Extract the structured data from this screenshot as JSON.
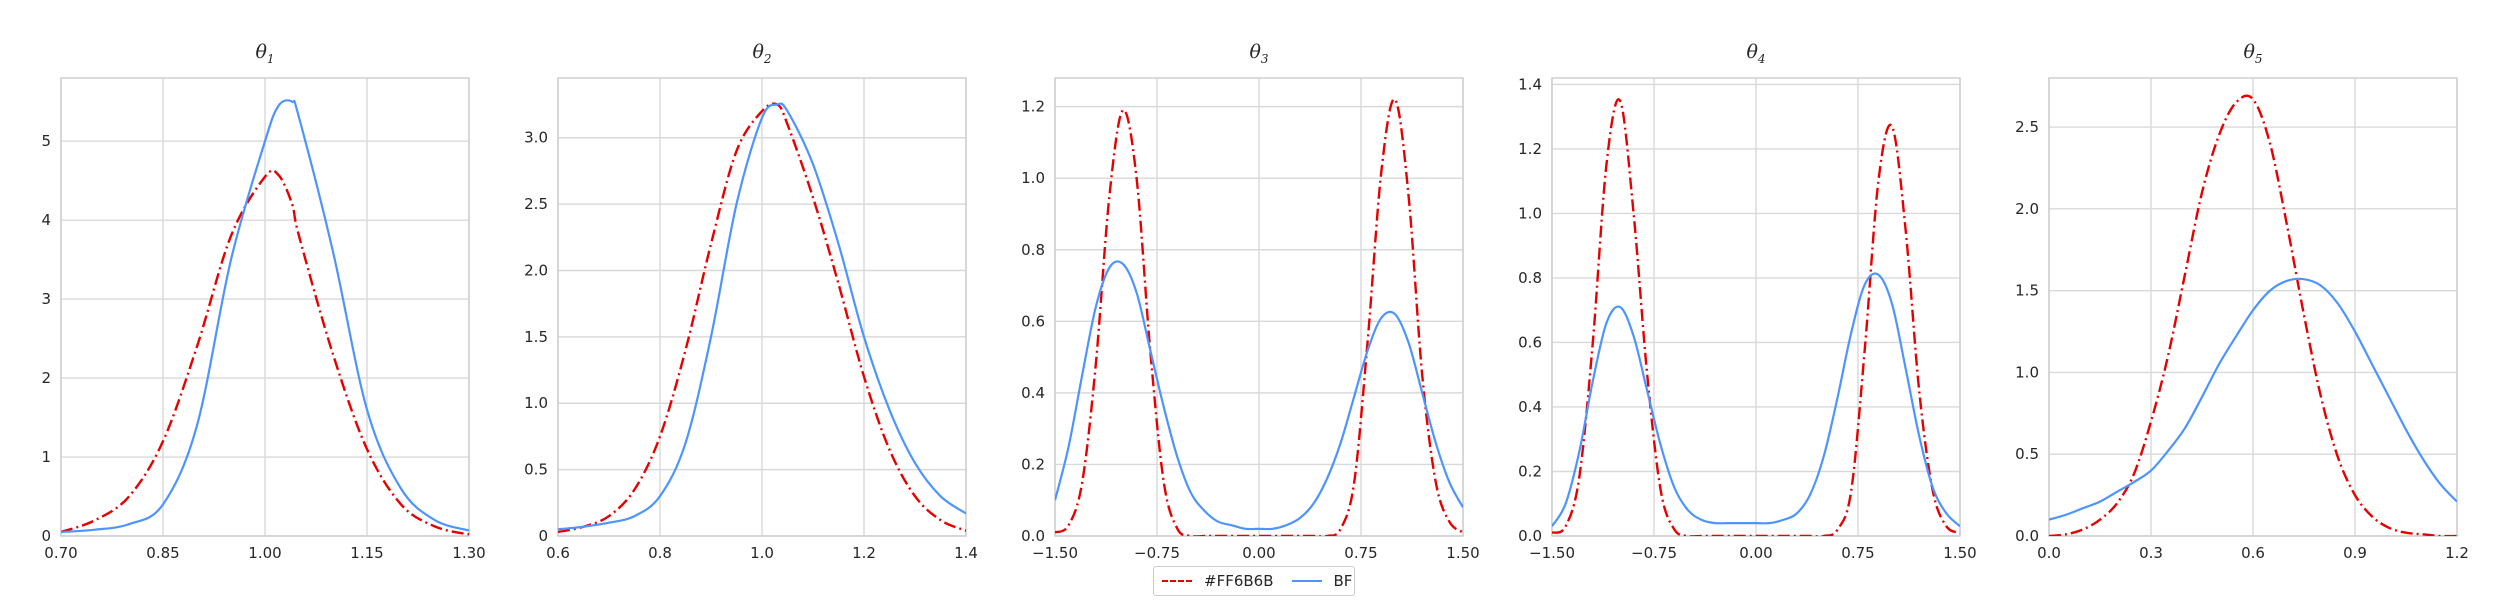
{
  "colors": {
    "series_a": "#e60000",
    "series_b": "#4d94ff"
  },
  "legend": {
    "series_a_label": "#FF6B6B",
    "series_b_label": "BF"
  },
  "chart_data": [
    {
      "type": "line",
      "title_symbol": "θ",
      "title_subscript": "1",
      "xlim": [
        0.7,
        1.3
      ],
      "ylim": [
        0,
        5.8
      ],
      "xticks": [
        "0.70",
        "0.85",
        "1.00",
        "1.15",
        "1.30"
      ],
      "yticks": [
        "0",
        "1",
        "2",
        "3",
        "4",
        "5"
      ],
      "x": [
        0.7,
        0.75,
        0.8,
        0.85,
        0.9,
        0.95,
        1.0,
        1.02,
        1.04,
        1.05,
        1.1,
        1.15,
        1.2,
        1.25,
        1.3
      ],
      "series": [
        {
          "name": "#FF6B6B",
          "values": [
            0.05,
            0.2,
            0.5,
            1.2,
            2.4,
            3.8,
            4.55,
            4.57,
            4.2,
            3.8,
            2.3,
            1.1,
            0.4,
            0.12,
            0.02
          ]
        },
        {
          "name": "BF",
          "values": [
            0.05,
            0.08,
            0.15,
            0.4,
            1.4,
            3.5,
            5.0,
            5.45,
            5.5,
            5.3,
            3.6,
            1.6,
            0.6,
            0.2,
            0.07
          ]
        }
      ]
    },
    {
      "type": "line",
      "title_symbol": "θ",
      "title_subscript": "2",
      "xlim": [
        0.6,
        1.4
      ],
      "ylim": [
        0,
        3.45
      ],
      "xticks": [
        "0.6",
        "0.8",
        "1.0",
        "1.2",
        "1.4"
      ],
      "yticks": [
        "0",
        "0.5",
        "1.0",
        "1.5",
        "2.0",
        "2.5",
        "3.0"
      ],
      "x": [
        0.6,
        0.65,
        0.7,
        0.75,
        0.8,
        0.85,
        0.9,
        0.95,
        1.0,
        1.03,
        1.05,
        1.1,
        1.15,
        1.2,
        1.25,
        1.3,
        1.35,
        1.4
      ],
      "series": [
        {
          "name": "#FF6B6B",
          "values": [
            0.03,
            0.07,
            0.15,
            0.35,
            0.75,
            1.4,
            2.2,
            2.9,
            3.2,
            3.25,
            3.1,
            2.55,
            1.9,
            1.2,
            0.65,
            0.3,
            0.12,
            0.04
          ]
        },
        {
          "name": "BF",
          "values": [
            0.05,
            0.07,
            0.1,
            0.15,
            0.3,
            0.7,
            1.5,
            2.5,
            3.15,
            3.25,
            3.2,
            2.8,
            2.2,
            1.5,
            0.95,
            0.55,
            0.3,
            0.17
          ]
        }
      ]
    },
    {
      "type": "line",
      "title_symbol": "θ",
      "title_subscript": "3",
      "xlim": [
        -1.5,
        1.5
      ],
      "ylim": [
        0,
        1.28
      ],
      "xticks": [
        "−1.50",
        "−0.75",
        "0.00",
        "0.75",
        "1.50"
      ],
      "yticks": [
        "0.0",
        "0.2",
        "0.4",
        "0.6",
        "0.8",
        "1.0",
        "1.2"
      ],
      "x": [
        -1.5,
        -1.4,
        -1.3,
        -1.2,
        -1.1,
        -1.0,
        -0.9,
        -0.8,
        -0.7,
        -0.6,
        -0.5,
        -0.4,
        -0.3,
        -0.2,
        -0.1,
        0.0,
        0.1,
        0.2,
        0.3,
        0.4,
        0.5,
        0.6,
        0.7,
        0.8,
        0.9,
        1.0,
        1.1,
        1.2,
        1.3,
        1.4,
        1.5
      ],
      "series": [
        {
          "name": "#FF6B6B",
          "values": [
            0.01,
            0.03,
            0.15,
            0.48,
            0.95,
            1.19,
            1.0,
            0.52,
            0.15,
            0.02,
            0.0,
            0.0,
            0.0,
            0.0,
            0.0,
            0.0,
            0.0,
            0.0,
            0.0,
            0.0,
            0.0,
            0.02,
            0.15,
            0.55,
            1.02,
            1.22,
            0.95,
            0.45,
            0.15,
            0.04,
            0.01
          ]
        },
        {
          "name": "BF",
          "values": [
            0.1,
            0.25,
            0.45,
            0.64,
            0.75,
            0.76,
            0.68,
            0.52,
            0.36,
            0.22,
            0.12,
            0.07,
            0.04,
            0.03,
            0.02,
            0.02,
            0.02,
            0.03,
            0.05,
            0.09,
            0.16,
            0.26,
            0.39,
            0.52,
            0.61,
            0.62,
            0.54,
            0.4,
            0.26,
            0.15,
            0.08
          ]
        }
      ]
    },
    {
      "type": "line",
      "title_symbol": "θ",
      "title_subscript": "4",
      "xlim": [
        -1.5,
        1.5
      ],
      "ylim": [
        0,
        1.42
      ],
      "xticks": [
        "−1.50",
        "−0.75",
        "0.00",
        "0.75",
        "1.50"
      ],
      "yticks": [
        "0.0",
        "0.2",
        "0.4",
        "0.6",
        "0.8",
        "1.0",
        "1.2",
        "1.4"
      ],
      "x": [
        -1.5,
        -1.4,
        -1.3,
        -1.2,
        -1.1,
        -1.0,
        -0.9,
        -0.8,
        -0.7,
        -0.6,
        -0.5,
        -0.4,
        -0.3,
        -0.2,
        -0.1,
        0.0,
        0.1,
        0.2,
        0.3,
        0.4,
        0.5,
        0.6,
        0.7,
        0.8,
        0.9,
        1.0,
        1.1,
        1.2,
        1.3,
        1.4,
        1.5
      ],
      "series": [
        {
          "name": "#FF6B6B",
          "values": [
            0.01,
            0.03,
            0.18,
            0.6,
            1.15,
            1.35,
            1.0,
            0.5,
            0.14,
            0.02,
            0.0,
            0.0,
            0.0,
            0.0,
            0.0,
            0.0,
            0.0,
            0.0,
            0.0,
            0.0,
            0.0,
            0.02,
            0.14,
            0.58,
            1.1,
            1.27,
            0.95,
            0.45,
            0.14,
            0.03,
            0.01
          ]
        },
        {
          "name": "BF",
          "values": [
            0.03,
            0.1,
            0.26,
            0.48,
            0.66,
            0.71,
            0.62,
            0.45,
            0.28,
            0.15,
            0.08,
            0.05,
            0.04,
            0.04,
            0.04,
            0.04,
            0.04,
            0.05,
            0.07,
            0.13,
            0.25,
            0.43,
            0.63,
            0.78,
            0.81,
            0.72,
            0.52,
            0.31,
            0.15,
            0.07,
            0.03
          ]
        }
      ]
    },
    {
      "type": "line",
      "title_symbol": "θ",
      "title_subscript": "5",
      "xlim": [
        0.0,
        1.2
      ],
      "ylim": [
        0,
        2.8
      ],
      "xticks": [
        "0.0",
        "0.3",
        "0.6",
        "0.9",
        "1.2"
      ],
      "yticks": [
        "0.0",
        "0.5",
        "1.0",
        "1.5",
        "2.0",
        "2.5"
      ],
      "x": [
        0.0,
        0.05,
        0.1,
        0.15,
        0.2,
        0.25,
        0.3,
        0.35,
        0.4,
        0.45,
        0.5,
        0.55,
        0.6,
        0.65,
        0.7,
        0.75,
        0.8,
        0.85,
        0.9,
        0.95,
        1.0,
        1.05,
        1.1,
        1.15,
        1.2
      ],
      "series": [
        {
          "name": "#FF6B6B",
          "values": [
            0.0,
            0.01,
            0.04,
            0.1,
            0.2,
            0.38,
            0.7,
            1.1,
            1.6,
            2.1,
            2.45,
            2.65,
            2.67,
            2.4,
            1.9,
            1.35,
            0.85,
            0.48,
            0.25,
            0.12,
            0.05,
            0.02,
            0.01,
            0.0,
            0.0
          ]
        },
        {
          "name": "BF",
          "values": [
            0.1,
            0.13,
            0.17,
            0.21,
            0.27,
            0.33,
            0.4,
            0.52,
            0.66,
            0.85,
            1.05,
            1.22,
            1.38,
            1.5,
            1.56,
            1.57,
            1.53,
            1.42,
            1.25,
            1.05,
            0.85,
            0.65,
            0.47,
            0.32,
            0.21
          ]
        }
      ]
    }
  ]
}
